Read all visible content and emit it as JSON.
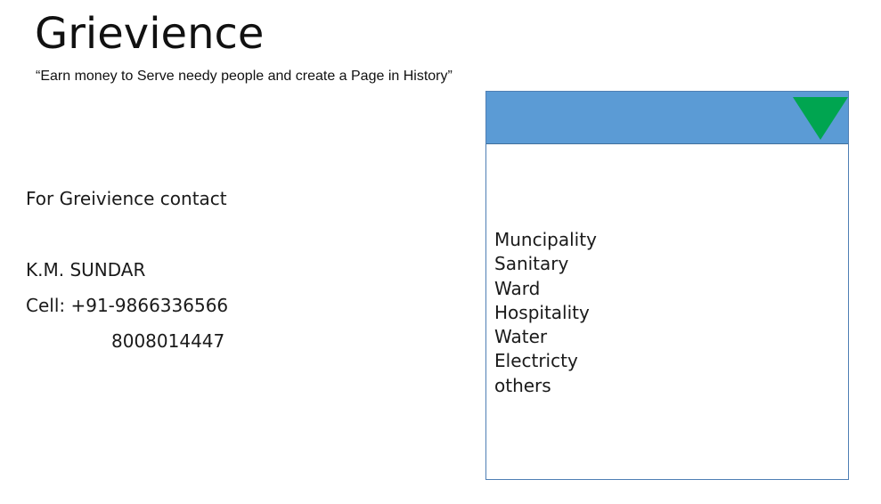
{
  "header": {
    "title": "Grievience",
    "tagline": "“Earn money to Serve needy people and create a Page in History”"
  },
  "contact": {
    "heading": "For Greivience contact",
    "name": "K.M. SUNDAR",
    "cell": "Cell: +91-9866336566",
    "alt_number": "8008014447"
  },
  "dropdown": {
    "arrow_icon": "triangle-down-icon",
    "header_color": "#5b9bd5",
    "arrow_color": "#00a550",
    "options": [
      "Muncipality",
      "Sanitary",
      "Ward",
      "Hospitality",
      "Water",
      "Electricty",
      "others"
    ]
  }
}
